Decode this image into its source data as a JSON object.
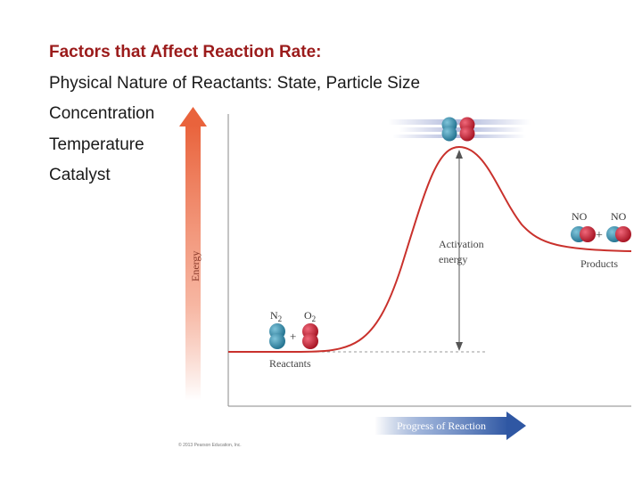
{
  "slide": {
    "title": "Factors that Affect Reaction Rate:",
    "lines": [
      "Physical Nature of Reactants:  State, Particle Size",
      "Concentration",
      "Temperature",
      "Catalyst"
    ]
  },
  "diagram": {
    "y_axis_label": "Energy",
    "x_axis_label": "Progress of Reaction",
    "activation_label_1": "Activation",
    "activation_label_2": "energy",
    "reactants_label": "Reactants",
    "products_label": "Products",
    "reactant_n2": "N",
    "reactant_n2_sub": "2",
    "reactant_o2": "O",
    "reactant_o2_sub": "2",
    "product_no_1": "NO",
    "product_no_2": "NO",
    "plus": "+",
    "copyright": "© 2013 Pearson Education, Inc.",
    "colors": {
      "curve": "#c9312c",
      "energy_arrow": "#e9633c",
      "progress_arrow": "#2f57a3",
      "nitrogen": "#2f86a6",
      "oxygen": "#c3182f"
    }
  }
}
